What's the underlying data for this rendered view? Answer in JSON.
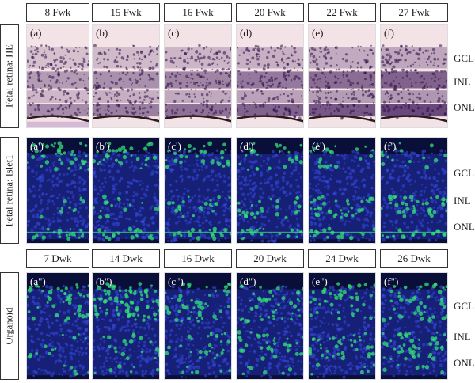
{
  "header_row1": [
    "8 Fwk",
    "15 Fwk",
    "16 Fwk",
    "20 Fwk",
    "22 Fwk",
    "27 Fwk"
  ],
  "header_row3": [
    "7 Dwk",
    "14 Dwk",
    "16 Dwk",
    "20 Dwk",
    "24 Dwk",
    "26 Dwk"
  ],
  "row_labels": [
    "Fetal retina: HE",
    "Fetal retina: Islet1",
    "Organoid"
  ],
  "panel_labels_he": [
    "(a)",
    "(b)",
    "(c)",
    "(d)",
    "(e)",
    "(f)"
  ],
  "panel_labels_islet": [
    "(a')",
    "(b')",
    "(c')",
    "(d')",
    "(e')",
    "(f')"
  ],
  "panel_labels_org": [
    "(a\")",
    "(b\")",
    "(c\")",
    "(d\")",
    "(e\")",
    "(f\")"
  ],
  "layer_labels": [
    "GCL",
    "INL",
    "ONL"
  ],
  "colors": {
    "he_bg": "#f3e2e6",
    "he_stain": "#4a2462",
    "dapi": "#1f2fa8",
    "islet": "#33e07a"
  }
}
